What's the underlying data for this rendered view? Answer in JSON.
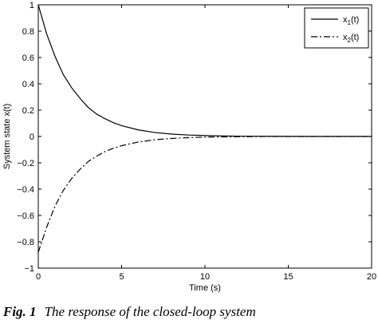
{
  "chart_data": {
    "type": "line",
    "title": "",
    "xlabel": "Time (s)",
    "ylabel": "System state x(t)",
    "xlim": [
      0,
      20
    ],
    "ylim": [
      -1,
      1
    ],
    "x_ticks": [
      "0",
      "5",
      "10",
      "15",
      "20"
    ],
    "y_ticks": [
      "−1",
      "−0.8",
      "−0.6",
      "−0.4",
      "−0.2",
      "0",
      "0.2",
      "0.4",
      "0.6",
      "0.8",
      "1"
    ],
    "grid": false,
    "legend_position": "top-right",
    "series": [
      {
        "name": "x",
        "subscript": "1",
        "suffix": "(t)",
        "line_style": "solid",
        "x": [
          0,
          0.5,
          1,
          1.5,
          2,
          2.5,
          3,
          3.5,
          4,
          4.5,
          5,
          6,
          7,
          8,
          9,
          10,
          12,
          14,
          16,
          18,
          20
        ],
        "y": [
          1,
          0.78,
          0.61,
          0.47,
          0.37,
          0.29,
          0.22,
          0.17,
          0.135,
          0.105,
          0.082,
          0.05,
          0.03,
          0.018,
          0.011,
          0.007,
          0.002,
          0.001,
          0,
          0,
          0
        ]
      },
      {
        "name": "x",
        "subscript": "2",
        "suffix": "(t)",
        "line_style": "dashdot",
        "x": [
          0,
          0.5,
          1,
          1.5,
          2,
          2.5,
          3,
          3.5,
          4,
          4.5,
          5,
          6,
          7,
          8,
          9,
          10,
          12,
          14,
          16,
          18,
          20
        ],
        "y": [
          -0.88,
          -0.69,
          -0.53,
          -0.41,
          -0.32,
          -0.25,
          -0.19,
          -0.15,
          -0.115,
          -0.09,
          -0.07,
          -0.042,
          -0.025,
          -0.015,
          -0.009,
          -0.005,
          -0.002,
          0,
          0,
          0,
          0
        ]
      }
    ]
  },
  "caption": {
    "label": "Fig. 1",
    "text": "The response of the closed-loop system"
  }
}
